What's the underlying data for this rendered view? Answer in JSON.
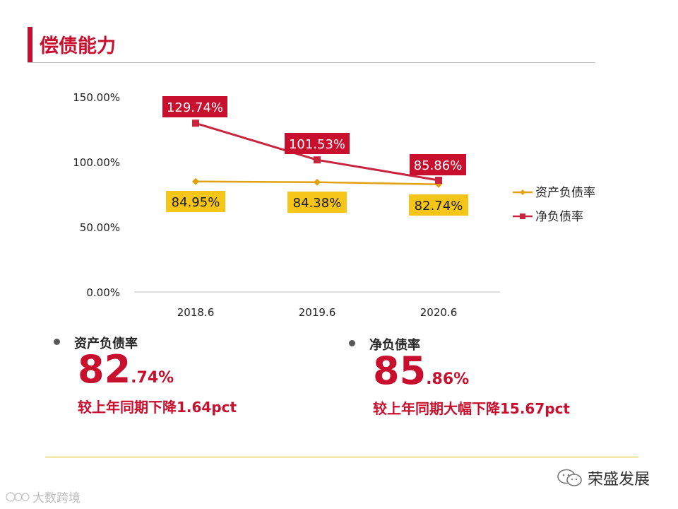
{
  "page": {
    "title": "偿债能力"
  },
  "chart_data": {
    "type": "line",
    "categories": [
      "2018.6",
      "2019.6",
      "2020.6"
    ],
    "ylim": [
      0,
      150
    ],
    "yticks": [
      0,
      50,
      100,
      150
    ],
    "ytick_labels": [
      "0.00%",
      "50.00%",
      "100.00%",
      "150.00%"
    ],
    "series": [
      {
        "name": "资产负债率",
        "color": "#e3a00f",
        "label_bg": "#f5c518",
        "marker": "diamond",
        "values": [
          84.95,
          84.38,
          82.74
        ],
        "labels": [
          "84.95%",
          "84.38%",
          "82.74%"
        ]
      },
      {
        "name": "净负债率",
        "color": "#c8253f",
        "label_bg": "#c8102e",
        "marker": "square",
        "values": [
          129.74,
          101.53,
          85.86
        ],
        "labels": [
          "129.74%",
          "101.53%",
          "85.86%"
        ]
      }
    ],
    "legend": "right"
  },
  "stats": [
    {
      "label": "资产负债率",
      "int": "82",
      "dec": ".74%",
      "change": "较上年同期下降1.64pct"
    },
    {
      "label": "净负债率",
      "int": "85",
      "dec": ".86%",
      "change": "较上年同期大幅下降15.67pct"
    }
  ],
  "footer": {
    "brand": "荣盛发展",
    "watermark": "大数跨境"
  },
  "colors": {
    "accent": "#c8102e",
    "yellow": "#f5c518",
    "rule": "#e6c200"
  }
}
